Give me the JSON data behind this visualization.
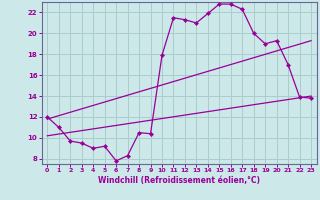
{
  "title": "",
  "xlabel": "Windchill (Refroidissement éolien,°C)",
  "ylabel": "",
  "bg_color": "#cce8e8",
  "grid_color": "#aacccc",
  "line_color": "#990099",
  "spine_color": "#666699",
  "xlim": [
    -0.5,
    23.5
  ],
  "ylim": [
    7.5,
    23.0
  ],
  "xticks": [
    0,
    1,
    2,
    3,
    4,
    5,
    6,
    7,
    8,
    9,
    10,
    11,
    12,
    13,
    14,
    15,
    16,
    17,
    18,
    19,
    20,
    21,
    22,
    23
  ],
  "yticks": [
    8,
    10,
    12,
    14,
    16,
    18,
    20,
    22
  ],
  "main_x": [
    0,
    1,
    2,
    3,
    4,
    5,
    6,
    7,
    8,
    9,
    10,
    11,
    12,
    13,
    14,
    15,
    16,
    17,
    18,
    19,
    20,
    21,
    22,
    23
  ],
  "main_y": [
    12.0,
    11.0,
    9.7,
    9.5,
    9.0,
    9.2,
    7.8,
    8.3,
    10.5,
    10.4,
    17.9,
    21.5,
    21.3,
    21.0,
    21.9,
    22.8,
    22.8,
    22.3,
    20.0,
    19.0,
    19.3,
    17.0,
    13.9,
    13.8
  ],
  "line1_x": [
    0,
    23
  ],
  "line1_y": [
    10.2,
    14.0
  ],
  "line2_x": [
    0,
    23
  ],
  "line2_y": [
    11.8,
    19.3
  ]
}
